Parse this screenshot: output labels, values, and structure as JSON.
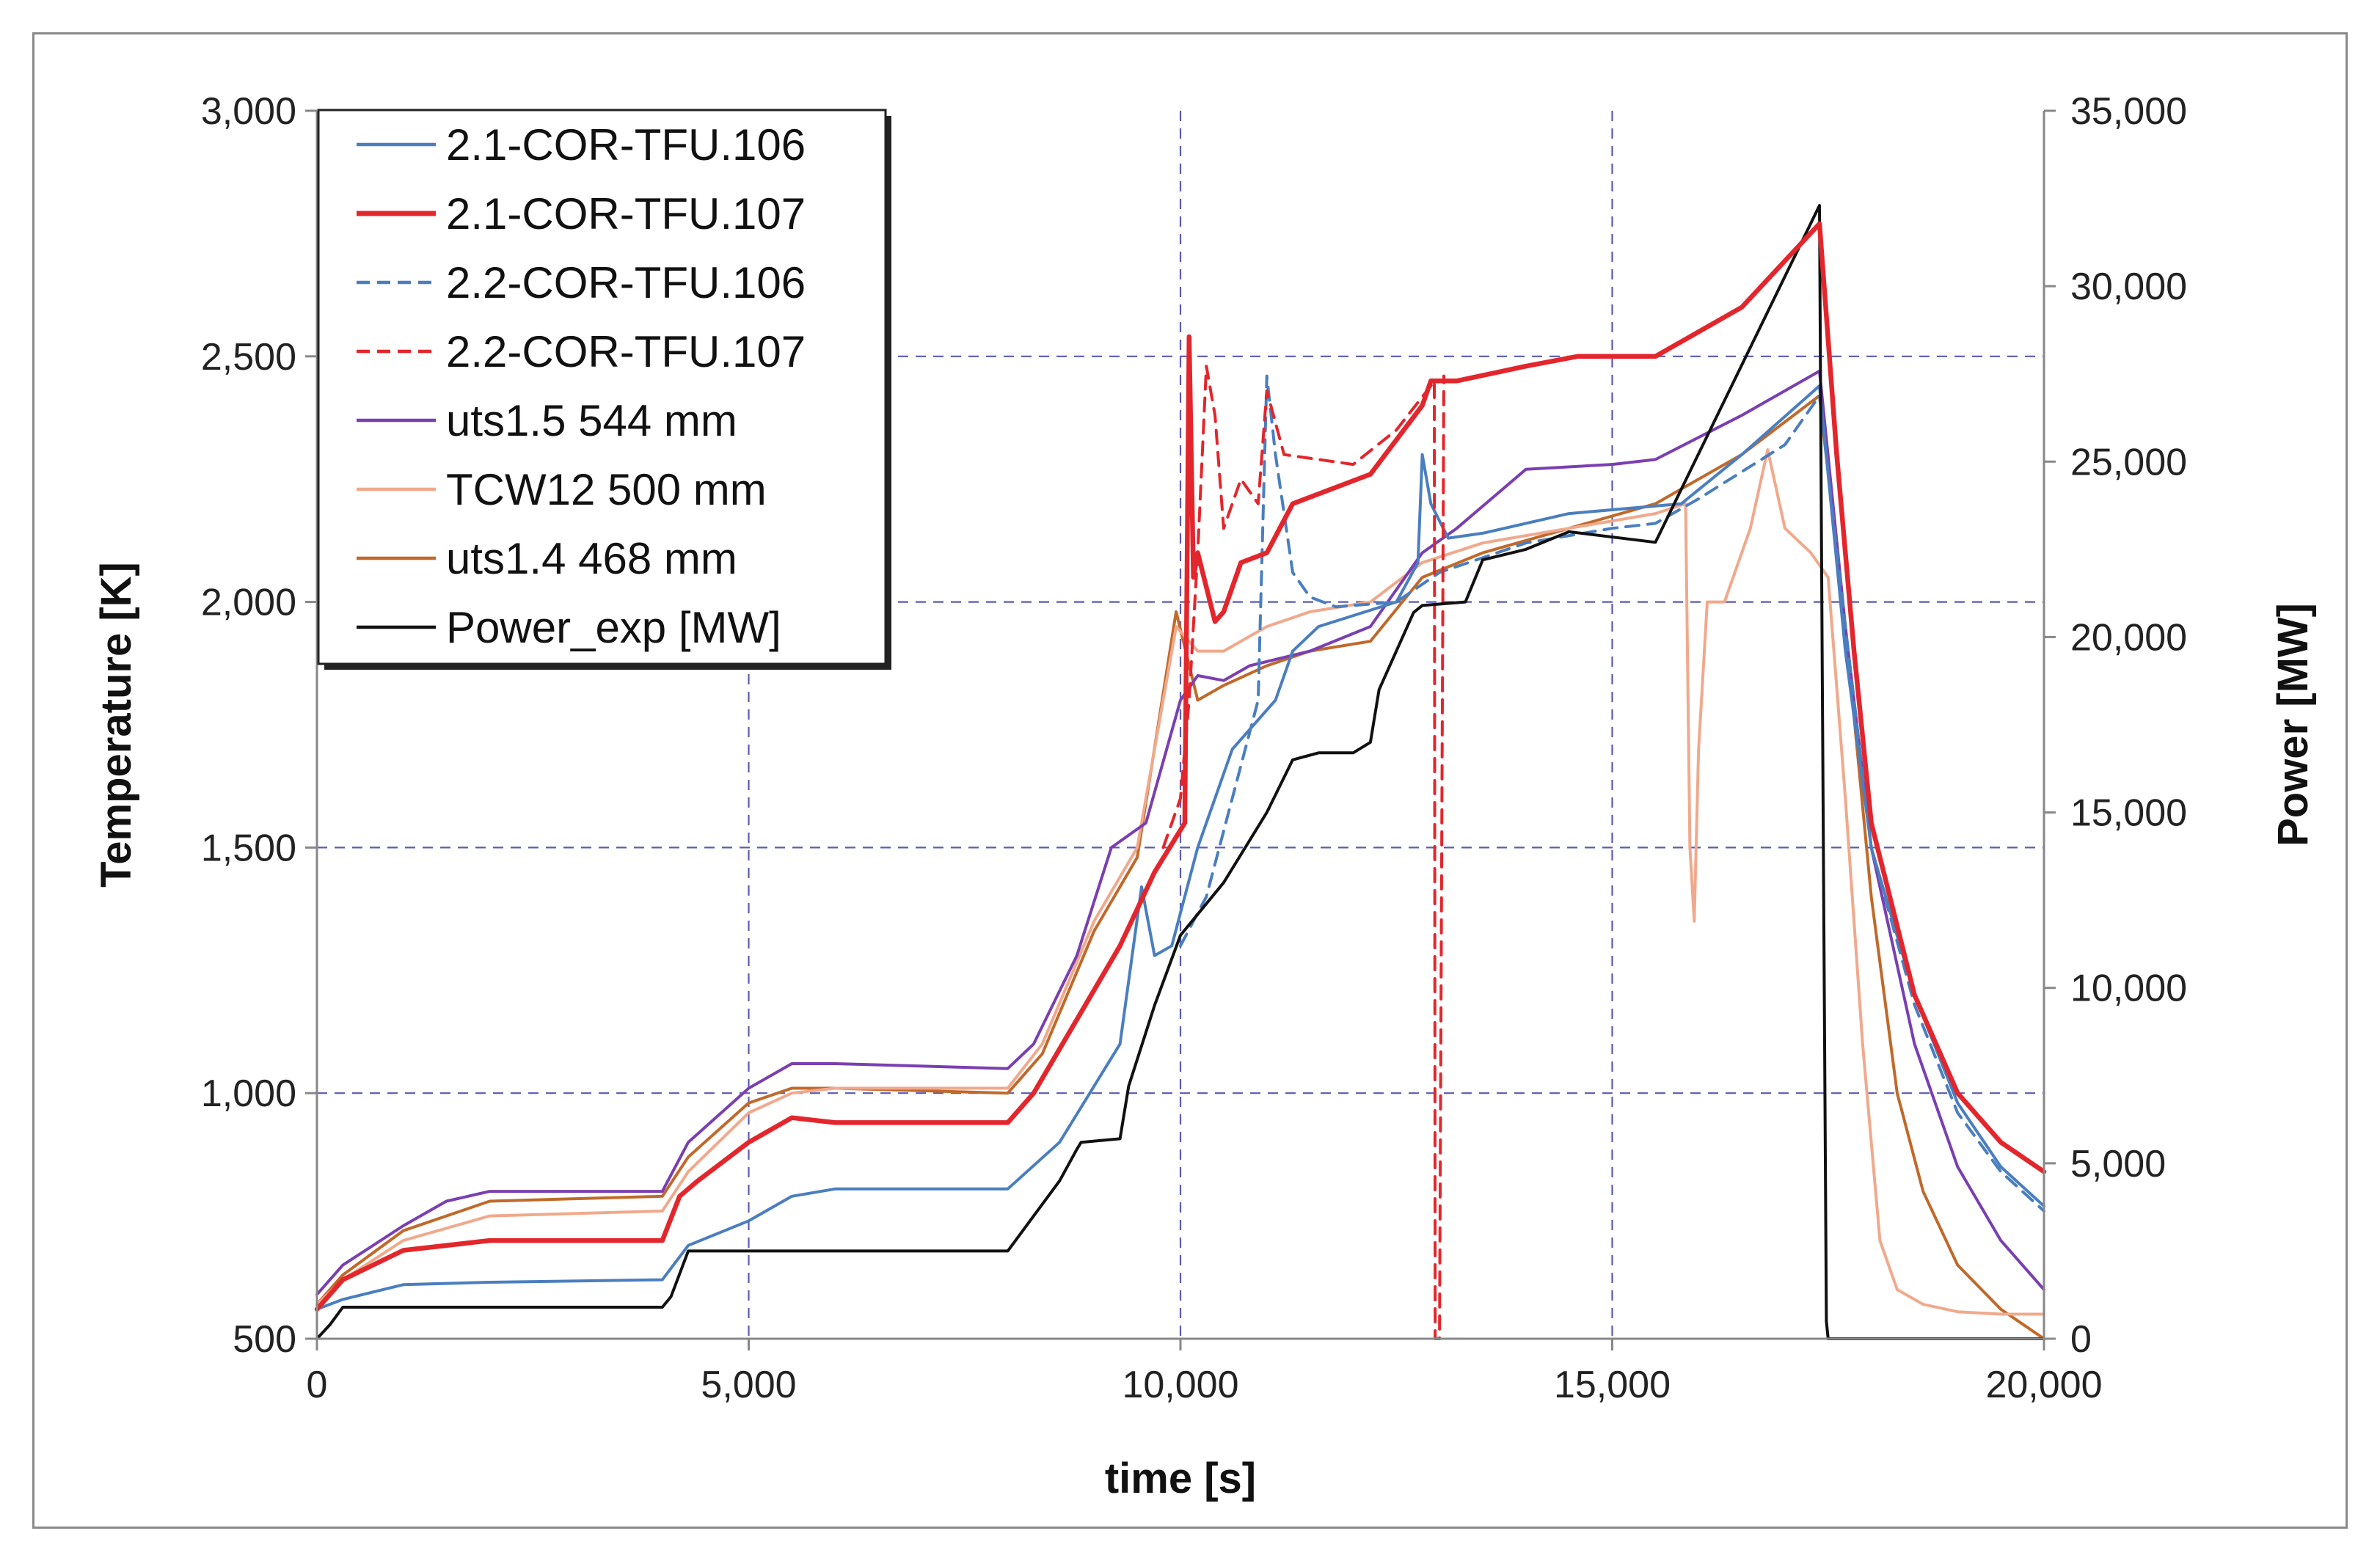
{
  "chart_data": {
    "type": "line",
    "title": "",
    "xlabel": "time [s]",
    "ylabel": "Temperature [K]",
    "y2label": "Power [MW]",
    "xlim": [
      0,
      20000
    ],
    "ylim": [
      500,
      3000
    ],
    "y2lim": [
      0,
      35000
    ],
    "xticks": [
      0,
      5000,
      10000,
      15000,
      20000
    ],
    "yticks": [
      500,
      1000,
      1500,
      2000,
      2500,
      3000
    ],
    "y2ticks": [
      0,
      5000,
      10000,
      15000,
      20000,
      25000,
      30000,
      35000
    ],
    "xtick_labels": [
      "0",
      "5,000",
      "10,000",
      "15,000",
      "20,000"
    ],
    "ytick_labels": [
      "500",
      "1,000",
      "1,500",
      "2,000",
      "2,500",
      "3,000"
    ],
    "y2tick_labels": [
      "0",
      "5,000",
      "10,000",
      "15,000",
      "20,000",
      "25,000",
      "30,000",
      "35,000"
    ],
    "grid": true,
    "legend_position": "top-left",
    "series": [
      {
        "name": "2.1-COR-TFU.106",
        "color": "#4a7ebf",
        "dash": "solid",
        "axis": "left",
        "x": [
          0,
          300,
          1000,
          2000,
          4000,
          4300,
          5000,
          5500,
          6000,
          8000,
          8600,
          9300,
          9550,
          9700,
          9900,
          10200,
          10600,
          11100,
          11300,
          11600,
          12500,
          12750,
          12800,
          12900,
          13100,
          13500,
          14500,
          15800,
          16500,
          17400,
          17700,
          18000,
          18500,
          19000,
          19500,
          20000
        ],
        "y": [
          560,
          580,
          610,
          615,
          620,
          690,
          740,
          790,
          805,
          805,
          900,
          1100,
          1420,
          1280,
          1300,
          1500,
          1700,
          1800,
          1900,
          1950,
          2000,
          2080,
          2300,
          2200,
          2130,
          2140,
          2180,
          2200,
          2300,
          2440,
          1900,
          1500,
          1200,
          980,
          850,
          770
        ]
      },
      {
        "name": "2.1-COR-TFU.107",
        "color": "#e3262c",
        "dash": "solid",
        "axis": "left",
        "x": [
          0,
          300,
          1000,
          2000,
          4000,
          4200,
          4400,
          5000,
          5500,
          6000,
          8000,
          8300,
          8800,
          9300,
          9700,
          10050,
          10100,
          10150,
          10200,
          10400,
          10500,
          10700,
          11000,
          11300,
          12200,
          12800,
          12900,
          13200,
          14000,
          14600,
          15500,
          16500,
          17400,
          17600,
          17800,
          18000,
          18500,
          19000,
          19500,
          20000
        ],
        "y": [
          560,
          620,
          680,
          700,
          700,
          790,
          820,
          900,
          950,
          940,
          940,
          1000,
          1150,
          1300,
          1450,
          1550,
          2540,
          2050,
          2100,
          1960,
          1980,
          2080,
          2100,
          2200,
          2260,
          2400,
          2450,
          2450,
          2480,
          2500,
          2500,
          2600,
          2770,
          2300,
          1900,
          1550,
          1200,
          1000,
          900,
          840
        ]
      },
      {
        "name": "2.2-COR-TFU.106",
        "color": "#4a7ebf",
        "dash": "dashed",
        "axis": "left",
        "x": [
          10000,
          10300,
          10600,
          10900,
          11000,
          11100,
          11300,
          11500,
          11800,
          12500,
          13000,
          14000,
          15000,
          15500,
          16000,
          17000,
          17400,
          17700,
          18000,
          18500,
          19000,
          19500,
          20000
        ],
        "y": [
          1300,
          1400,
          1600,
          1800,
          2460,
          2300,
          2060,
          2010,
          1990,
          2000,
          2060,
          2120,
          2150,
          2160,
          2210,
          2320,
          2420,
          1950,
          1500,
          1180,
          960,
          840,
          760
        ]
      },
      {
        "name": "2.2-COR-TFU.107",
        "color": "#e3262c",
        "dash": "dashed",
        "axis": "left",
        "x": [
          9800,
          10000,
          10100,
          10200,
          10300,
          10400,
          10500,
          10700,
          10900,
          11000,
          11200,
          11600,
          12000,
          12500,
          12900,
          12940,
          12950,
          13000,
          13050
        ],
        "y": [
          1500,
          1600,
          1800,
          2100,
          2480,
          2380,
          2150,
          2250,
          2200,
          2430,
          2300,
          2290,
          2280,
          2350,
          2440,
          2450,
          500,
          500,
          2460
        ]
      },
      {
        "name": "uts1.5 544 mm",
        "color": "#7a3fb0",
        "dash": "solid",
        "axis": "left",
        "x": [
          0,
          300,
          1000,
          1500,
          2000,
          4000,
          4300,
          5000,
          5500,
          6000,
          8000,
          8300,
          8800,
          9200,
          9600,
          10000,
          10200,
          10500,
          10800,
          11500,
          12200,
          12800,
          13200,
          14000,
          15000,
          15500,
          16500,
          17400,
          17700,
          18000,
          18500,
          19000,
          19500,
          20000
        ],
        "y": [
          590,
          650,
          730,
          780,
          800,
          800,
          900,
          1010,
          1060,
          1060,
          1050,
          1100,
          1280,
          1500,
          1550,
          1800,
          1850,
          1840,
          1870,
          1900,
          1950,
          2100,
          2150,
          2270,
          2280,
          2290,
          2380,
          2470,
          1950,
          1500,
          1100,
          850,
          700,
          600
        ]
      },
      {
        "name": "TCW12 500 mm",
        "color": "#f0a98c",
        "dash": "solid",
        "axis": "left",
        "x": [
          0,
          300,
          1000,
          2000,
          4000,
          4300,
          5000,
          5500,
          6000,
          8000,
          8400,
          9000,
          9500,
          9950,
          10200,
          10500,
          11000,
          11500,
          12200,
          12800,
          13500,
          14500,
          15500,
          15850,
          15900,
          15950,
          16000,
          16100,
          16300,
          16600,
          16800,
          17000,
          17300,
          17500,
          17700,
          17900,
          18100,
          18300,
          18600,
          19000,
          19500,
          20000
        ],
        "y": [
          570,
          620,
          700,
          750,
          760,
          840,
          960,
          1000,
          1010,
          1010,
          1100,
          1350,
          1500,
          1950,
          1900,
          1900,
          1950,
          1980,
          2000,
          2080,
          2120,
          2150,
          2180,
          2200,
          1500,
          1350,
          1700,
          2000,
          2000,
          2150,
          2310,
          2150,
          2100,
          2050,
          1600,
          1100,
          700,
          600,
          570,
          555,
          550,
          550
        ]
      },
      {
        "name": "uts1.4 468 mm",
        "color": "#c0692a",
        "dash": "solid",
        "axis": "left",
        "x": [
          0,
          300,
          1000,
          2000,
          4000,
          4300,
          5000,
          5500,
          6000,
          8000,
          8400,
          9000,
          9500,
          9950,
          10200,
          10500,
          11000,
          11500,
          12200,
          12800,
          13500,
          14500,
          15500,
          16500,
          17400,
          17700,
          18000,
          18300,
          18600,
          19000,
          19500,
          20000
        ],
        "y": [
          570,
          630,
          720,
          780,
          790,
          870,
          980,
          1010,
          1010,
          1000,
          1080,
          1330,
          1480,
          1980,
          1800,
          1830,
          1870,
          1900,
          1920,
          2050,
          2100,
          2150,
          2200,
          2300,
          2420,
          1950,
          1400,
          1000,
          800,
          650,
          560,
          500
        ]
      },
      {
        "name": "Power_exp [MW]",
        "color": "#111111",
        "dash": "solid",
        "axis": "right",
        "x": [
          0,
          150,
          300,
          4000,
          4100,
          4300,
          8000,
          8300,
          8600,
          8800,
          8850,
          9300,
          9400,
          9700,
          10000,
          10500,
          11000,
          11300,
          11600,
          12000,
          12200,
          12300,
          12700,
          12800,
          13300,
          13500,
          14000,
          14500,
          15500,
          17400,
          17430,
          17480,
          17500,
          18000,
          20000
        ],
        "y": [
          0,
          400,
          900,
          900,
          1200,
          2500,
          2500,
          3500,
          4500,
          5400,
          5600,
          5700,
          7200,
          9500,
          11500,
          13000,
          15000,
          16500,
          16700,
          16700,
          17000,
          18500,
          20700,
          20900,
          21000,
          22200,
          22500,
          23000,
          22700,
          32300,
          20000,
          500,
          0,
          0,
          0
        ]
      }
    ]
  }
}
